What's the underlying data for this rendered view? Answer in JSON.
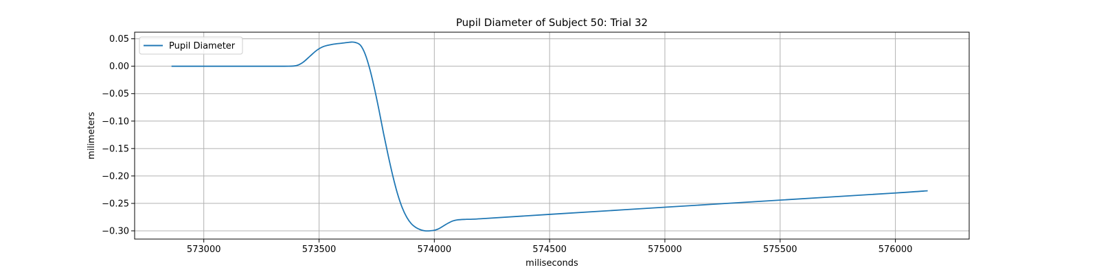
{
  "chart_data": {
    "type": "line",
    "title": "Pupil Diameter of Subject 50: Trial 32",
    "xlabel": "miliseconds",
    "ylabel": "milimeters",
    "xlim": [
      572700,
      576320
    ],
    "ylim": [
      -0.315,
      0.062
    ],
    "xticks": [
      573000,
      573500,
      574000,
      574500,
      575000,
      575500,
      576000
    ],
    "xtick_labels": [
      "573000",
      "573500",
      "574000",
      "574500",
      "575000",
      "575500",
      "576000"
    ],
    "yticks": [
      0.05,
      0.0,
      -0.05,
      -0.1,
      -0.15,
      -0.2,
      -0.25,
      -0.3
    ],
    "ytick_labels": [
      "0.05",
      "0.00",
      "−0.05",
      "−0.10",
      "−0.15",
      "−0.20",
      "−0.25",
      "−0.30"
    ],
    "grid": true,
    "legend_position": "top-left",
    "series": [
      {
        "name": "Pupil Diameter",
        "color": "#1f77b4",
        "x": [
          572860,
          573000,
          573200,
          573350,
          573400,
          573430,
          573460,
          573490,
          573520,
          573560,
          573600,
          573640,
          573660,
          573680,
          573700,
          573720,
          573740,
          573760,
          573780,
          573800,
          573820,
          573840,
          573860,
          573880,
          573900,
          573920,
          573940,
          573960,
          573980,
          574000,
          574020,
          574040,
          574060,
          574080,
          574100,
          574140,
          574200,
          574500,
          575000,
          575500,
          576000,
          576140
        ],
        "y": [
          0.0,
          0.0,
          0.0,
          0.0,
          0.001,
          0.007,
          0.018,
          0.029,
          0.036,
          0.04,
          0.042,
          0.044,
          0.043,
          0.038,
          0.022,
          -0.005,
          -0.04,
          -0.08,
          -0.123,
          -0.163,
          -0.2,
          -0.232,
          -0.257,
          -0.275,
          -0.287,
          -0.294,
          -0.298,
          -0.3,
          -0.3,
          -0.299,
          -0.296,
          -0.291,
          -0.286,
          -0.282,
          -0.28,
          -0.279,
          -0.278,
          -0.27,
          -0.257,
          -0.244,
          -0.231,
          -0.227
        ]
      }
    ]
  }
}
